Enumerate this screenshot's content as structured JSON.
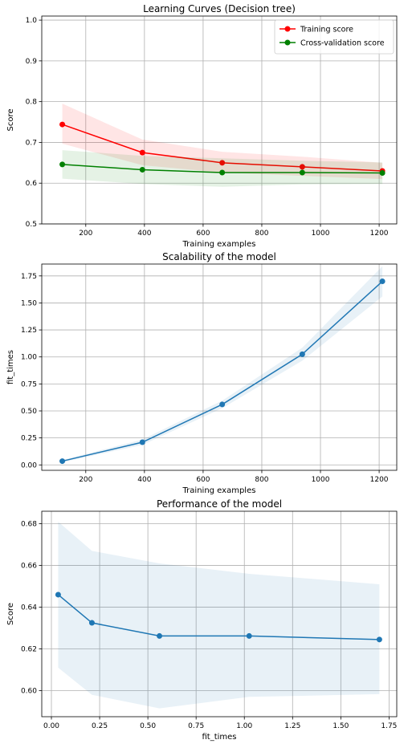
{
  "chart_data": [
    {
      "type": "line",
      "title": "Learning Curves (Decision tree)",
      "xlabel": "Training examples",
      "ylabel": "Score",
      "xlim": [
        50,
        1260
      ],
      "ylim": [
        0.5,
        1.01
      ],
      "xticks": [
        200,
        400,
        600,
        800,
        1000,
        1200
      ],
      "yticks": [
        0.5,
        0.6,
        0.7,
        0.8,
        0.9,
        1.0
      ],
      "yticklabels": [
        "0.5",
        "0.6",
        "0.7",
        "0.8",
        "0.9",
        "1.0"
      ],
      "grid": true,
      "legend_position": "top-right",
      "x": [
        120,
        393,
        665,
        938,
        1211
      ],
      "series": [
        {
          "name": "Training score",
          "color": "#ff0000",
          "values": [
            0.744,
            0.675,
            0.65,
            0.64,
            0.63
          ],
          "band_lower": [
            0.697,
            0.644,
            0.626,
            0.618,
            0.61
          ],
          "band_upper": [
            0.795,
            0.707,
            0.677,
            0.665,
            0.65
          ]
        },
        {
          "name": "Cross-validation score",
          "color": "#008000",
          "values": [
            0.646,
            0.633,
            0.626,
            0.626,
            0.625
          ],
          "band_lower": [
            0.611,
            0.598,
            0.591,
            0.597,
            0.598
          ],
          "band_upper": [
            0.681,
            0.667,
            0.661,
            0.655,
            0.651
          ]
        }
      ]
    },
    {
      "type": "line",
      "title": "Scalability of the model",
      "xlabel": "Training examples",
      "ylabel": "fit_times",
      "xlim": [
        50,
        1260
      ],
      "ylim": [
        -0.05,
        1.86
      ],
      "xticks": [
        200,
        400,
        600,
        800,
        1000,
        1200
      ],
      "yticks": [
        0,
        0.25,
        0.5,
        0.75,
        1.0,
        1.25,
        1.5,
        1.75
      ],
      "yticklabels": [
        "0.00",
        "0.25",
        "0.50",
        "0.75",
        "1.00",
        "1.25",
        "1.50",
        "1.75"
      ],
      "grid": true,
      "x": [
        120,
        393,
        665,
        938,
        1211
      ],
      "series": [
        {
          "color": "#1f77b4",
          "values": [
            0.035,
            0.21,
            0.56,
            1.025,
            1.7
          ],
          "band_lower": [
            0.025,
            0.185,
            0.525,
            0.965,
            1.56
          ],
          "band_upper": [
            0.045,
            0.235,
            0.595,
            1.085,
            1.84
          ]
        }
      ]
    },
    {
      "type": "line",
      "title": "Performance of the model",
      "xlabel": "fit_times",
      "ylabel": "Score",
      "xlim": [
        -0.05,
        1.79
      ],
      "ylim": [
        0.5875,
        0.686
      ],
      "xticks": [
        0,
        0.25,
        0.5,
        0.75,
        1.0,
        1.25,
        1.5,
        1.75
      ],
      "xticklabels": [
        "0.00",
        "0.25",
        "0.50",
        "0.75",
        "1.00",
        "1.25",
        "1.50",
        "1.75"
      ],
      "yticks": [
        0.6,
        0.62,
        0.64,
        0.66,
        0.68
      ],
      "yticklabels": [
        "0.60",
        "0.62",
        "0.64",
        "0.66",
        "0.68"
      ],
      "grid": true,
      "x": [
        0.035,
        0.21,
        0.56,
        1.025,
        1.7
      ],
      "series": [
        {
          "color": "#1f77b4",
          "values": [
            0.646,
            0.6325,
            0.6262,
            0.6262,
            0.6245
          ],
          "band_lower": [
            0.611,
            0.598,
            0.5915,
            0.597,
            0.5983
          ],
          "band_upper": [
            0.681,
            0.667,
            0.661,
            0.656,
            0.651
          ]
        }
      ]
    }
  ]
}
